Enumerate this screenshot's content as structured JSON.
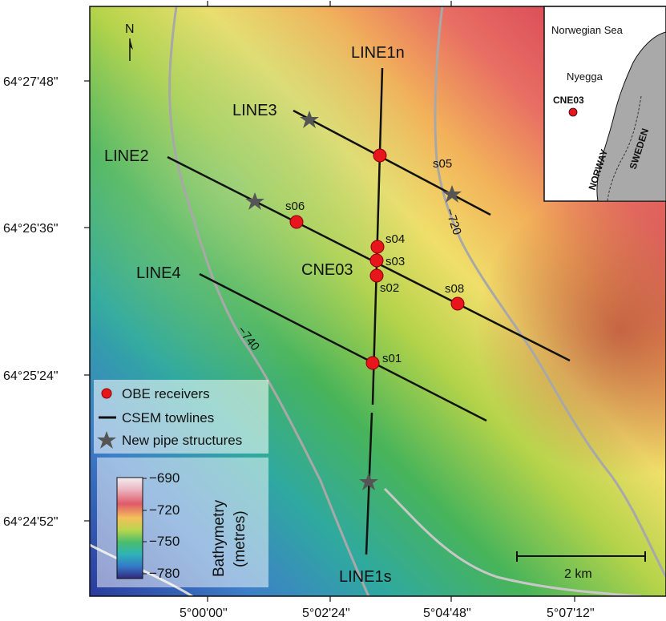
{
  "map": {
    "north_label": "N",
    "lat_ticks": [
      "64°27'48\"",
      "64°26'36\"",
      "64°25'24\"",
      "64°24'52\""
    ],
    "lon_ticks": [
      "5°00'00\"",
      "5°02'24\"",
      "5°04'48\"",
      "5°07'12\""
    ],
    "lines": {
      "line1n": "LINE1n",
      "line1s": "LINE1s",
      "line2": "LINE2",
      "line3": "LINE3",
      "line4": "LINE4"
    },
    "receivers": {
      "s01": "s01",
      "s02": "s02",
      "s03": "s03",
      "s04": "s04",
      "s05": "s05",
      "s06": "s06",
      "s08": "s08"
    },
    "site_label": "CNE03",
    "contours": {
      "c720": "−720",
      "c740": "−740"
    },
    "scale_bar": "2 km"
  },
  "legend": {
    "obe": "OBE receivers",
    "csem": "CSEM towlines",
    "pipes": "New pipe structures"
  },
  "colorbar": {
    "title_line1": "Bathymetry",
    "title_line2": "(metres)",
    "ticks": [
      "−690",
      "−720",
      "−750",
      "−780"
    ]
  },
  "inset": {
    "sea": "Norwegian Sea",
    "field": "Nyegga",
    "site": "CNE03",
    "country1": "NORWAY",
    "country2": "SWEDEN"
  },
  "colors": {
    "receiver": "#e8161c",
    "towline": "#111111",
    "pipe": "#555555",
    "contour": "#a8a8a8",
    "land": "#a9a9a9"
  }
}
